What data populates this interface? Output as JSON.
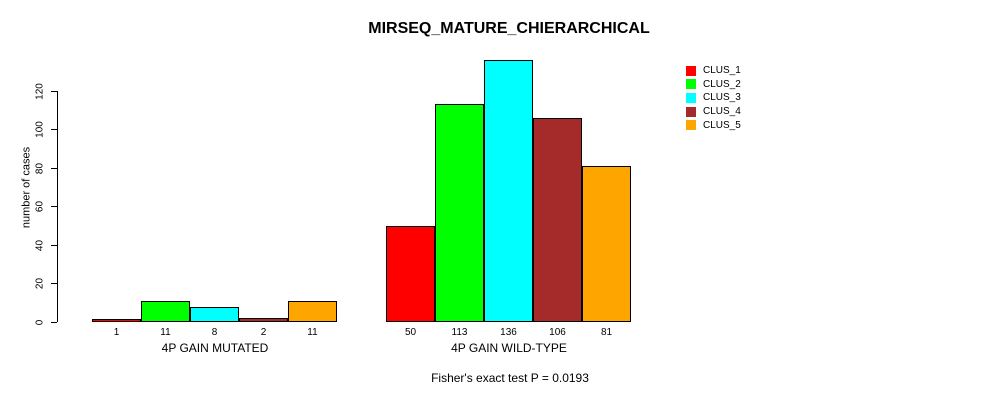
{
  "chart_data": {
    "type": "bar",
    "title": "MIRSEQ_MATURE_CHIERARCHICAL",
    "ylabel": "number of cases",
    "xlabel": "",
    "groups": [
      "4P GAIN MUTATED",
      "4P GAIN WILD-TYPE"
    ],
    "categories": [
      "CLUS_1",
      "CLUS_2",
      "CLUS_3",
      "CLUS_4",
      "CLUS_5"
    ],
    "series": [
      {
        "name": "CLUS_1",
        "color": "#FF0000",
        "values": [
          1,
          50
        ]
      },
      {
        "name": "CLUS_2",
        "color": "#00FF00",
        "values": [
          11,
          113
        ]
      },
      {
        "name": "CLUS_3",
        "color": "#00FFFF",
        "values": [
          8,
          136
        ]
      },
      {
        "name": "CLUS_4",
        "color": "#A52A2A",
        "values": [
          2,
          106
        ]
      },
      {
        "name": "CLUS_5",
        "color": "#FFA500",
        "values": [
          11,
          81
        ]
      }
    ],
    "bar_value_labels": {
      "mutated": [
        "1",
        "11",
        "8",
        "2",
        "11"
      ],
      "wild_type": [
        "50",
        "113",
        "136",
        "106",
        "81"
      ]
    },
    "yticks": [
      0,
      20,
      40,
      60,
      80,
      100,
      120
    ],
    "ylim": [
      0,
      136
    ],
    "grid": false,
    "legend_position": "right",
    "legend_entries": [
      "CLUS_1",
      "CLUS_2",
      "CLUS_3",
      "CLUS_4",
      "CLUS_5"
    ],
    "annotation": "Fisher's exact test P = 0.0193",
    "background_color": "#FFFFFF",
    "axis_color": "#000000",
    "bar_border_color": "#000000"
  }
}
